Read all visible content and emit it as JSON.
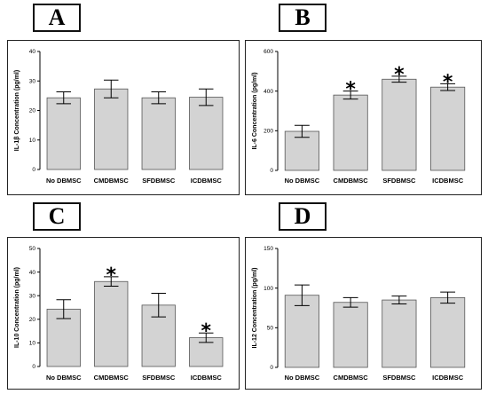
{
  "chart_data": [
    {
      "type": "bar",
      "panel_label": "A",
      "ylabel": "IL-1β Concentration (pg/ml)",
      "categories": [
        "No DBMSC",
        "CMDBMSC",
        "SFDBMSC",
        "ICDBMSC"
      ],
      "values": [
        24.3,
        27.3,
        24.3,
        24.5
      ],
      "errors": [
        2.0,
        3.0,
        2.0,
        2.8
      ],
      "significant": [
        false,
        false,
        false,
        false
      ],
      "ylim": [
        0,
        40
      ],
      "yticks": [
        0,
        10,
        20,
        30,
        40
      ],
      "significance_marker": "*",
      "bar_color": "#d3d3d3",
      "grid": false
    },
    {
      "type": "bar",
      "panel_label": "B",
      "ylabel": "IL-6 Concentration (pg/ml)",
      "categories": [
        "No DBMSC",
        "CMDBMSC",
        "SFDBMSC",
        "ICDBMSC"
      ],
      "values": [
        197,
        380,
        460,
        420
      ],
      "errors": [
        30,
        20,
        15,
        17
      ],
      "significant": [
        false,
        true,
        true,
        true
      ],
      "ylim": [
        0,
        600
      ],
      "yticks": [
        0,
        200,
        400,
        600
      ],
      "significance_marker": "*",
      "bar_color": "#d3d3d3",
      "grid": false
    },
    {
      "type": "bar",
      "panel_label": "C",
      "ylabel": "IL-10 Concentration (pg/ml)",
      "categories": [
        "No DBMSC",
        "CMDBMSC",
        "SFDBMSC",
        "ICDBMSC"
      ],
      "values": [
        24.3,
        36.0,
        26.0,
        12.2
      ],
      "errors": [
        4.0,
        2.0,
        5.0,
        2.0
      ],
      "significant": [
        false,
        true,
        false,
        true
      ],
      "ylim": [
        0,
        50
      ],
      "yticks": [
        0,
        10,
        20,
        30,
        40,
        50
      ],
      "significance_marker": "*",
      "bar_color": "#d3d3d3",
      "grid": false
    },
    {
      "type": "bar",
      "panel_label": "D",
      "ylabel": "IL-12 Concentration (pg/ml)",
      "categories": [
        "No DBMSC",
        "CMDBMSC",
        "SFDBMSC",
        "ICDBMSC"
      ],
      "values": [
        91,
        82,
        85,
        88
      ],
      "errors": [
        13,
        6,
        5,
        7
      ],
      "significant": [
        false,
        false,
        false,
        false
      ],
      "ylim": [
        0,
        150
      ],
      "yticks": [
        0,
        50,
        100,
        150
      ],
      "significance_marker": "*",
      "bar_color": "#d3d3d3",
      "grid": false
    }
  ]
}
